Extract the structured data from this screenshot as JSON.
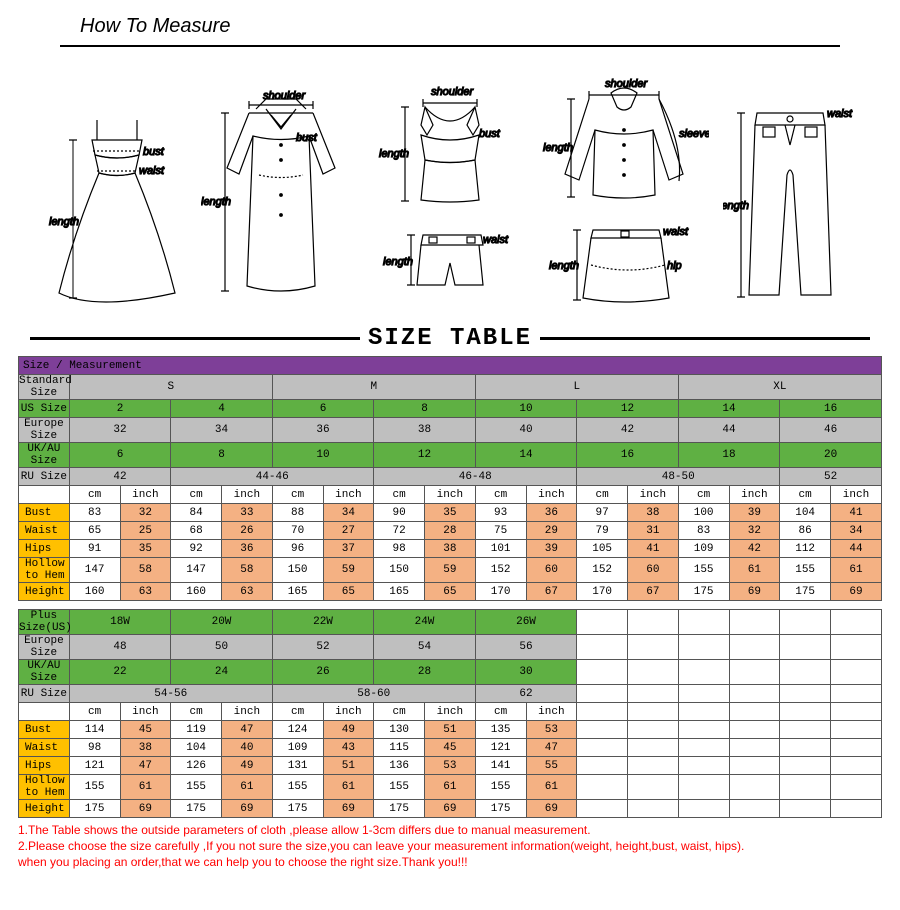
{
  "header": {
    "title": "How To Measure"
  },
  "size_table_title": "SIZE TABLE",
  "table1": {
    "header_row": "Size / Measurement",
    "std_sizes": [
      "S",
      "M",
      "L",
      "XL"
    ],
    "rows": {
      "std": {
        "label": "Standard Size",
        "bg": "grey"
      },
      "us": {
        "label": "US Size",
        "bg": "green",
        "vals": [
          "2",
          "4",
          "6",
          "8",
          "10",
          "12",
          "14",
          "16"
        ]
      },
      "eu": {
        "label": "Europe Size",
        "bg": "grey",
        "vals": [
          "32",
          "34",
          "36",
          "38",
          "40",
          "42",
          "44",
          "46"
        ]
      },
      "uk": {
        "label": "UK/AU Size",
        "bg": "green",
        "vals": [
          "6",
          "8",
          "10",
          "12",
          "14",
          "16",
          "18",
          "20"
        ]
      },
      "ru": {
        "label": "RU Size",
        "bg": "grey",
        "vals": [
          "42",
          "44-46",
          "46-48",
          "48-50",
          "52"
        ]
      },
      "units": {
        "bg": "white",
        "pair": [
          "cm",
          "inch"
        ]
      },
      "bust": {
        "label": "Bust",
        "cm": [
          "83",
          "84",
          "88",
          "90",
          "93",
          "97",
          "100",
          "104"
        ],
        "in": [
          "32",
          "33",
          "34",
          "35",
          "36",
          "38",
          "39",
          "41"
        ]
      },
      "waist": {
        "label": "Waist",
        "cm": [
          "65",
          "68",
          "70",
          "72",
          "75",
          "79",
          "83",
          "86"
        ],
        "in": [
          "25",
          "26",
          "27",
          "28",
          "29",
          "31",
          "32",
          "34"
        ]
      },
      "hips": {
        "label": "Hips",
        "cm": [
          "91",
          "92",
          "96",
          "98",
          "101",
          "105",
          "109",
          "112"
        ],
        "in": [
          "35",
          "36",
          "37",
          "38",
          "39",
          "41",
          "42",
          "44"
        ]
      },
      "hollow": {
        "label": "Hollow to Hem",
        "cm": [
          "147",
          "147",
          "150",
          "150",
          "152",
          "152",
          "155",
          "155"
        ],
        "in": [
          "58",
          "58",
          "59",
          "59",
          "60",
          "60",
          "61",
          "61"
        ]
      },
      "height": {
        "label": "Height",
        "cm": [
          "160",
          "160",
          "165",
          "165",
          "170",
          "170",
          "175",
          "175"
        ],
        "in": [
          "63",
          "63",
          "65",
          "65",
          "67",
          "67",
          "69",
          "69"
        ]
      }
    }
  },
  "table2": {
    "rows": {
      "plus": {
        "label": "Plus Size(US)",
        "bg": "green",
        "vals": [
          "18W",
          "20W",
          "22W",
          "24W",
          "26W"
        ]
      },
      "eu": {
        "label": "Europe Size",
        "bg": "grey",
        "vals": [
          "48",
          "50",
          "52",
          "54",
          "56"
        ]
      },
      "uk": {
        "label": "UK/AU Size",
        "bg": "green",
        "vals": [
          "22",
          "24",
          "26",
          "28",
          "30"
        ]
      },
      "ru": {
        "label": "RU Size",
        "bg": "grey",
        "vals": [
          "54-56",
          "58-60",
          "62"
        ]
      },
      "units": {
        "bg": "white",
        "pair": [
          "cm",
          "inch"
        ]
      },
      "bust": {
        "label": "Bust",
        "cm": [
          "114",
          "119",
          "124",
          "130",
          "135"
        ],
        "in": [
          "45",
          "47",
          "49",
          "51",
          "53"
        ]
      },
      "waist": {
        "label": "Waist",
        "cm": [
          "98",
          "104",
          "109",
          "115",
          "121"
        ],
        "in": [
          "38",
          "40",
          "43",
          "45",
          "47"
        ]
      },
      "hips": {
        "label": "Hips",
        "cm": [
          "121",
          "126",
          "131",
          "136",
          "141"
        ],
        "in": [
          "47",
          "49",
          "51",
          "53",
          "55"
        ]
      },
      "hollow": {
        "label": "Hollow to Hem",
        "cm": [
          "155",
          "155",
          "155",
          "155",
          "155"
        ],
        "in": [
          "61",
          "61",
          "61",
          "61",
          "61"
        ]
      },
      "height": {
        "label": "Height",
        "cm": [
          "175",
          "175",
          "175",
          "175",
          "175"
        ],
        "in": [
          "69",
          "69",
          "69",
          "69",
          "69"
        ]
      }
    }
  },
  "notes": [
    "1.The Table shows the outside parameters of cloth ,please allow 1-3cm differs due to manual measurement.",
    "2.Please choose the size carefully ,If you not sure the size,you can leave your measurement information(weight, height,bust, waist, hips).",
    "   when you placing an order,that we can help you to choose the right size.Thank you!!!"
  ],
  "colors": {
    "purple": "#7e3f98",
    "grey": "#bfbfbf",
    "green": "#5fb043",
    "orange": "#f4b183",
    "yorange": "#ffc000"
  }
}
